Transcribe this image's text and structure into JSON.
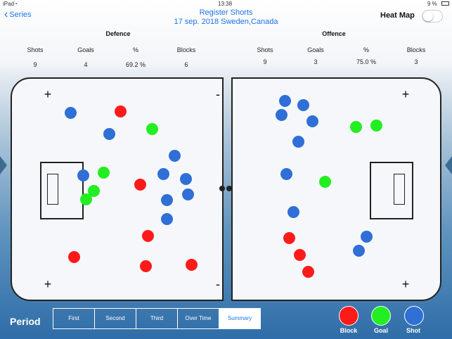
{
  "status_bar": {
    "carrier": "iPad",
    "time": "13:38",
    "battery": "9 %"
  },
  "nav": {
    "back_label": "Series",
    "title": "Register Shorts",
    "subtitle": "17 sep. 2018 Sweden,Canada",
    "heatmap_label": "Heat Map",
    "heatmap_on": false
  },
  "defence": {
    "title": "Defence",
    "stats": [
      {
        "label": "Shots",
        "value": "9"
      },
      {
        "label": "Goals",
        "value": "4"
      },
      {
        "label": "%",
        "value": "69.2 %"
      },
      {
        "label": "Blocks",
        "value": "6"
      }
    ]
  },
  "offence": {
    "title": "Offence",
    "stats": [
      {
        "label": "Shots",
        "value": "9"
      },
      {
        "label": "Goals",
        "value": "3"
      },
      {
        "label": "%",
        "value": "75.0 %"
      },
      {
        "label": "Blocks",
        "value": "3"
      }
    ]
  },
  "colors": {
    "block": "#ff1a1a",
    "goal": "#22ee22",
    "shot": "#2f6fd6"
  },
  "period": {
    "label": "Period",
    "tabs": [
      "First",
      "Second",
      "Third",
      "Over Time",
      "Summary"
    ],
    "active": "Summary"
  },
  "legend": [
    {
      "type": "block",
      "label": "Block",
      "icon": "red-circle"
    },
    {
      "type": "goal",
      "label": "Goal",
      "icon": "green-circle"
    },
    {
      "type": "shot",
      "label": "Shot",
      "icon": "blue-circle"
    }
  ]
}
